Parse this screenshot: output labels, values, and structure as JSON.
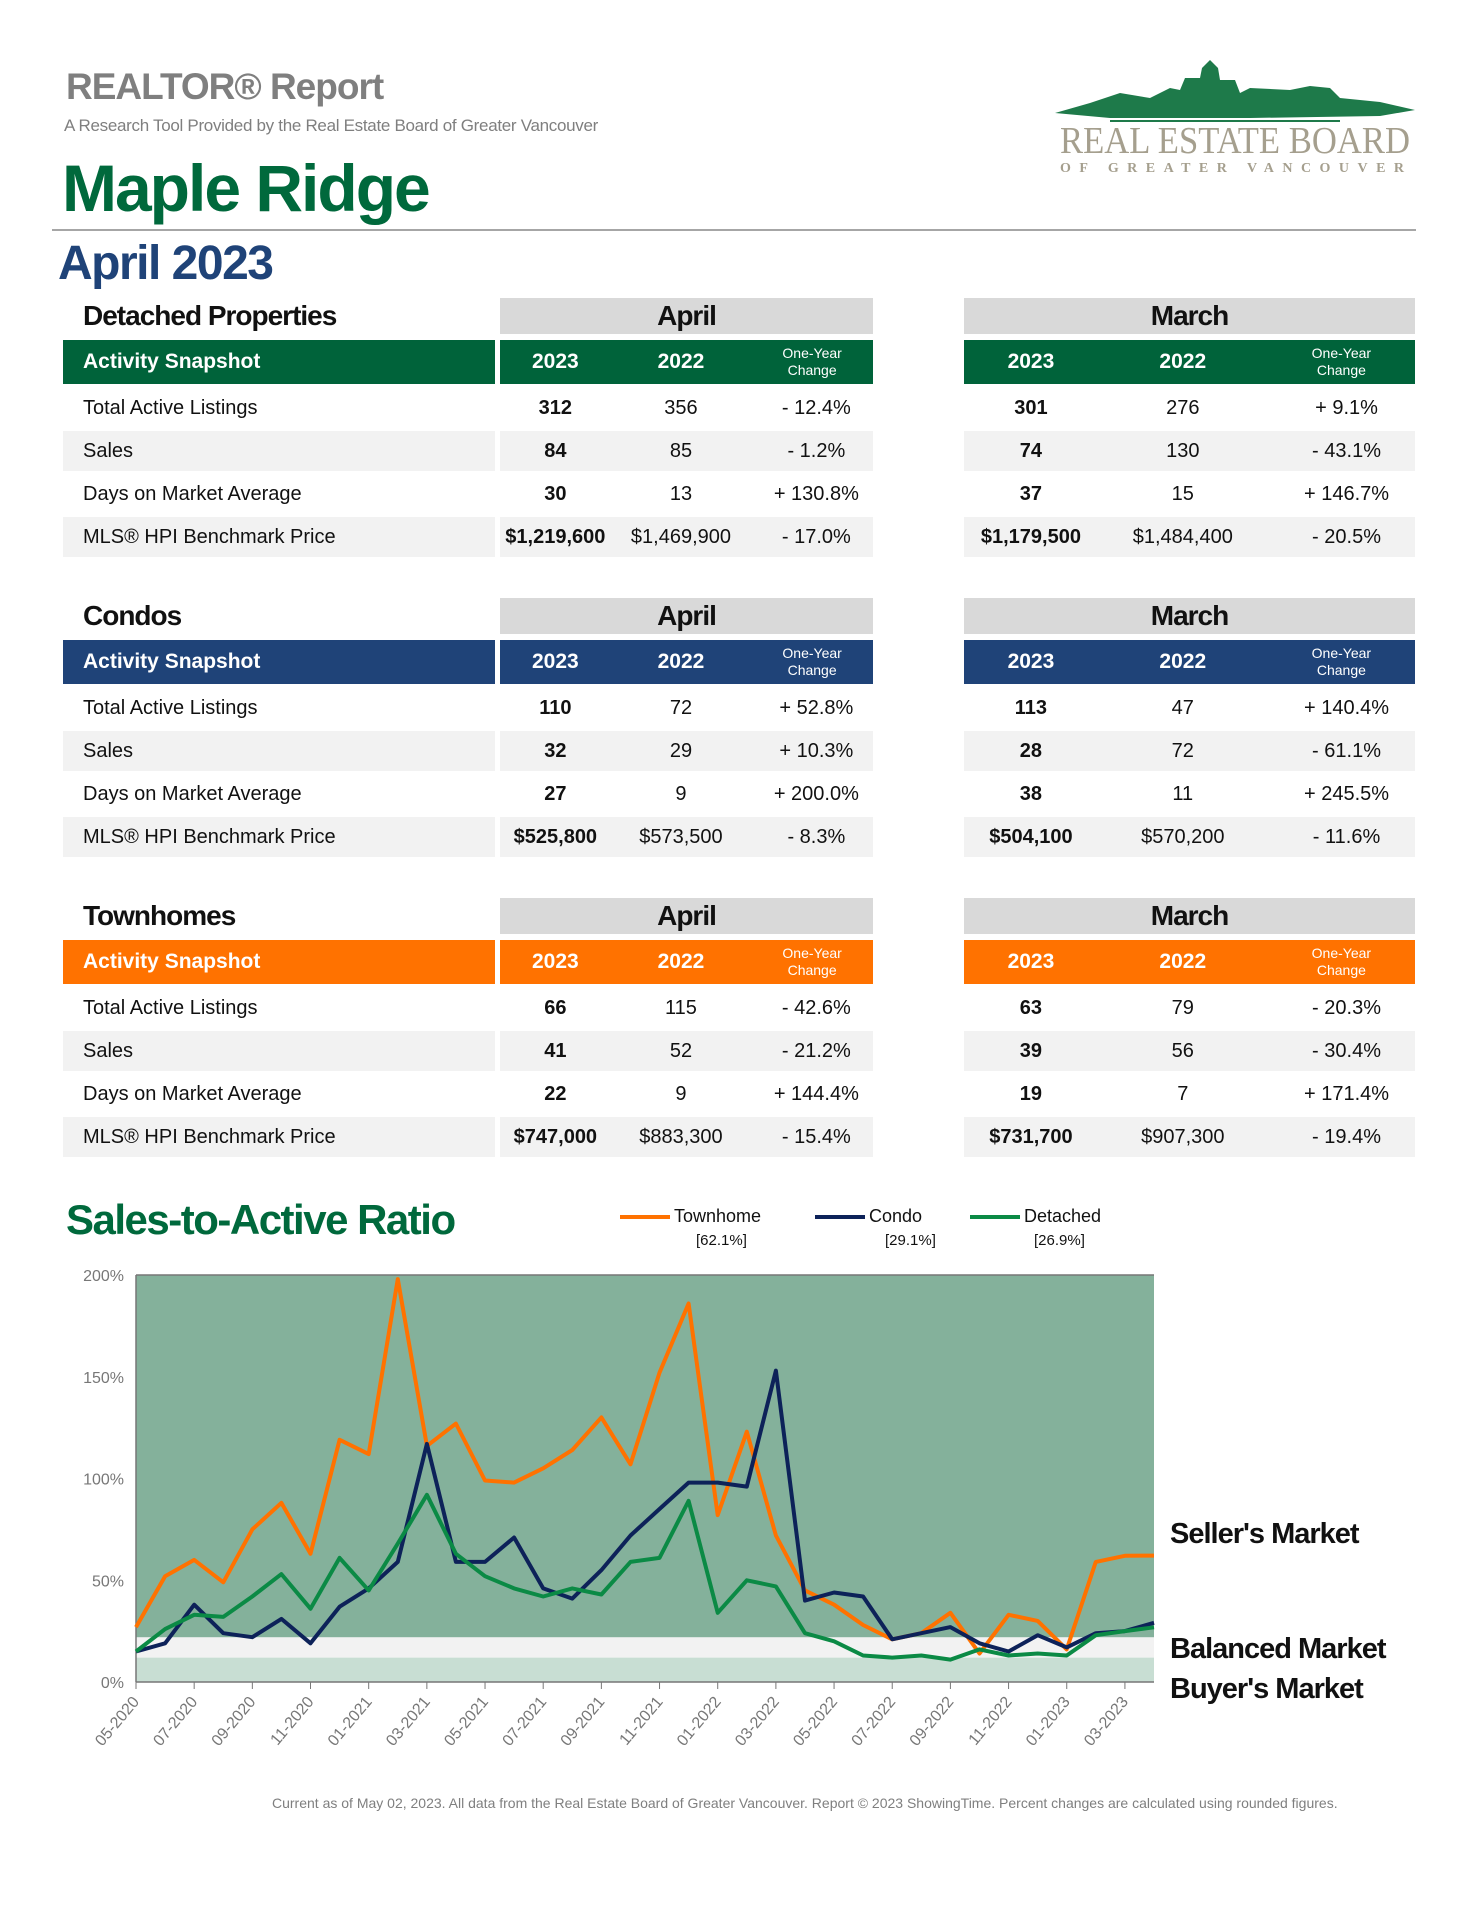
{
  "header": {
    "report_title": "REALTOR® Report",
    "subtitle": "A Research Tool Provided by the Real Estate Board of Greater Vancouver",
    "area": "Maple Ridge",
    "period": "April 2023",
    "logo_text": "REAL ESTATE BOARD",
    "logo_subtext": "OF GREATER VANCOUVER"
  },
  "colors": {
    "detached": "#00633a",
    "condo": "#1f4378",
    "townhome": "#ff7200"
  },
  "table_labels": {
    "snapshot": "Activity Snapshot",
    "group1": "April",
    "group2": "March",
    "y1": "2023",
    "y2": "2022",
    "change": [
      "One-Year",
      "Change"
    ]
  },
  "sections": [
    {
      "title": "Detached Properties",
      "color": "#00633a",
      "rows": [
        {
          "label": "Total Active Listings",
          "a23": "312",
          "a22": "356",
          "ach": "- 12.4%",
          "m23": "301",
          "m22": "276",
          "mch": "+ 9.1%"
        },
        {
          "label": "Sales",
          "a23": "84",
          "a22": "85",
          "ach": "- 1.2%",
          "m23": "74",
          "m22": "130",
          "mch": "- 43.1%"
        },
        {
          "label": "Days on Market Average",
          "a23": "30",
          "a22": "13",
          "ach": "+ 130.8%",
          "m23": "37",
          "m22": "15",
          "mch": "+ 146.7%"
        },
        {
          "label": "MLS® HPI Benchmark Price",
          "a23": "$1,219,600",
          "a22": "$1,469,900",
          "ach": "- 17.0%",
          "m23": "$1,179,500",
          "m22": "$1,484,400",
          "mch": "- 20.5%"
        }
      ]
    },
    {
      "title": "Condos",
      "color": "#1f4378",
      "rows": [
        {
          "label": "Total Active Listings",
          "a23": "110",
          "a22": "72",
          "ach": "+ 52.8%",
          "m23": "113",
          "m22": "47",
          "mch": "+ 140.4%"
        },
        {
          "label": "Sales",
          "a23": "32",
          "a22": "29",
          "ach": "+ 10.3%",
          "m23": "28",
          "m22": "72",
          "mch": "- 61.1%"
        },
        {
          "label": "Days on Market Average",
          "a23": "27",
          "a22": "9",
          "ach": "+ 200.0%",
          "m23": "38",
          "m22": "11",
          "mch": "+ 245.5%"
        },
        {
          "label": "MLS® HPI Benchmark Price",
          "a23": "$525,800",
          "a22": "$573,500",
          "ach": "- 8.3%",
          "m23": "$504,100",
          "m22": "$570,200",
          "mch": "- 11.6%"
        }
      ]
    },
    {
      "title": "Townhomes",
      "color": "#ff7200",
      "rows": [
        {
          "label": "Total Active Listings",
          "a23": "66",
          "a22": "115",
          "ach": "- 42.6%",
          "m23": "63",
          "m22": "79",
          "mch": "- 20.3%"
        },
        {
          "label": "Sales",
          "a23": "41",
          "a22": "52",
          "ach": "- 21.2%",
          "m23": "39",
          "m22": "56",
          "mch": "- 30.4%"
        },
        {
          "label": "Days on Market Average",
          "a23": "22",
          "a22": "9",
          "ach": "+ 144.4%",
          "m23": "19",
          "m22": "7",
          "mch": "+ 171.4%"
        },
        {
          "label": "MLS® HPI Benchmark Price",
          "a23": "$747,000",
          "a22": "$883,300",
          "ach": "- 15.4%",
          "m23": "$731,700",
          "m22": "$907,300",
          "mch": "- 19.4%"
        }
      ]
    }
  ],
  "chart_data": {
    "type": "line",
    "title": "Sales-to-Active Ratio",
    "ylim": [
      0,
      200
    ],
    "yticks": [
      "0%",
      "50%",
      "100%",
      "150%",
      "200%"
    ],
    "xticks": [
      "05-2020",
      "07-2020",
      "09-2020",
      "11-2020",
      "01-2021",
      "03-2021",
      "05-2021",
      "07-2021",
      "09-2021",
      "11-2021",
      "01-2022",
      "03-2022",
      "05-2022",
      "07-2022",
      "09-2022",
      "11-2022",
      "01-2023",
      "03-2023"
    ],
    "x_start": "05-2020",
    "x_end": "04-2023",
    "legend_position": "top",
    "bands": [
      {
        "label": "Buyer's Market",
        "from": 0,
        "to": 12,
        "color": "#c8ded3"
      },
      {
        "label": "Balanced Market",
        "from": 12,
        "to": 22,
        "color": "#f2f2f2"
      },
      {
        "label": "Seller's Market",
        "from": 22,
        "to": 200,
        "color": "#84b19b"
      }
    ],
    "series": [
      {
        "name": "Townhome",
        "latest": "[62.1%]",
        "color": "#ff7200",
        "values": [
          27,
          52,
          60,
          49,
          75,
          88,
          63,
          119,
          112,
          198,
          116,
          127,
          99,
          98,
          105,
          114,
          130,
          107,
          152,
          186,
          82,
          123,
          72,
          45,
          38,
          28,
          21,
          24,
          34,
          14,
          33,
          30,
          16,
          59,
          62,
          62.1
        ]
      },
      {
        "name": "Condo",
        "latest": "[29.1%]",
        "color": "#0d2259",
        "values": [
          15,
          19,
          38,
          24,
          22,
          31,
          19,
          37,
          46,
          59,
          117,
          59,
          59,
          71,
          46,
          41,
          55,
          72,
          85,
          98,
          98,
          96,
          153,
          40,
          44,
          42,
          21,
          24,
          27,
          19,
          15,
          23,
          17,
          24,
          25,
          29.1
        ]
      },
      {
        "name": "Detached",
        "latest": "[26.9%]",
        "color": "#0b8a45",
        "values": [
          15,
          26,
          33,
          32,
          42,
          53,
          36,
          61,
          45,
          68,
          92,
          63,
          52,
          46,
          42,
          46,
          43,
          59,
          61,
          89,
          34,
          50,
          47,
          24,
          20,
          13,
          12,
          13,
          11,
          16,
          13,
          14,
          13,
          23,
          25,
          26.9
        ]
      }
    ]
  },
  "footer": "Current as of May 02, 2023. All data from the Real Estate Board of Greater Vancouver. Report © 2023 ShowingTime. Percent changes are calculated using rounded figures."
}
